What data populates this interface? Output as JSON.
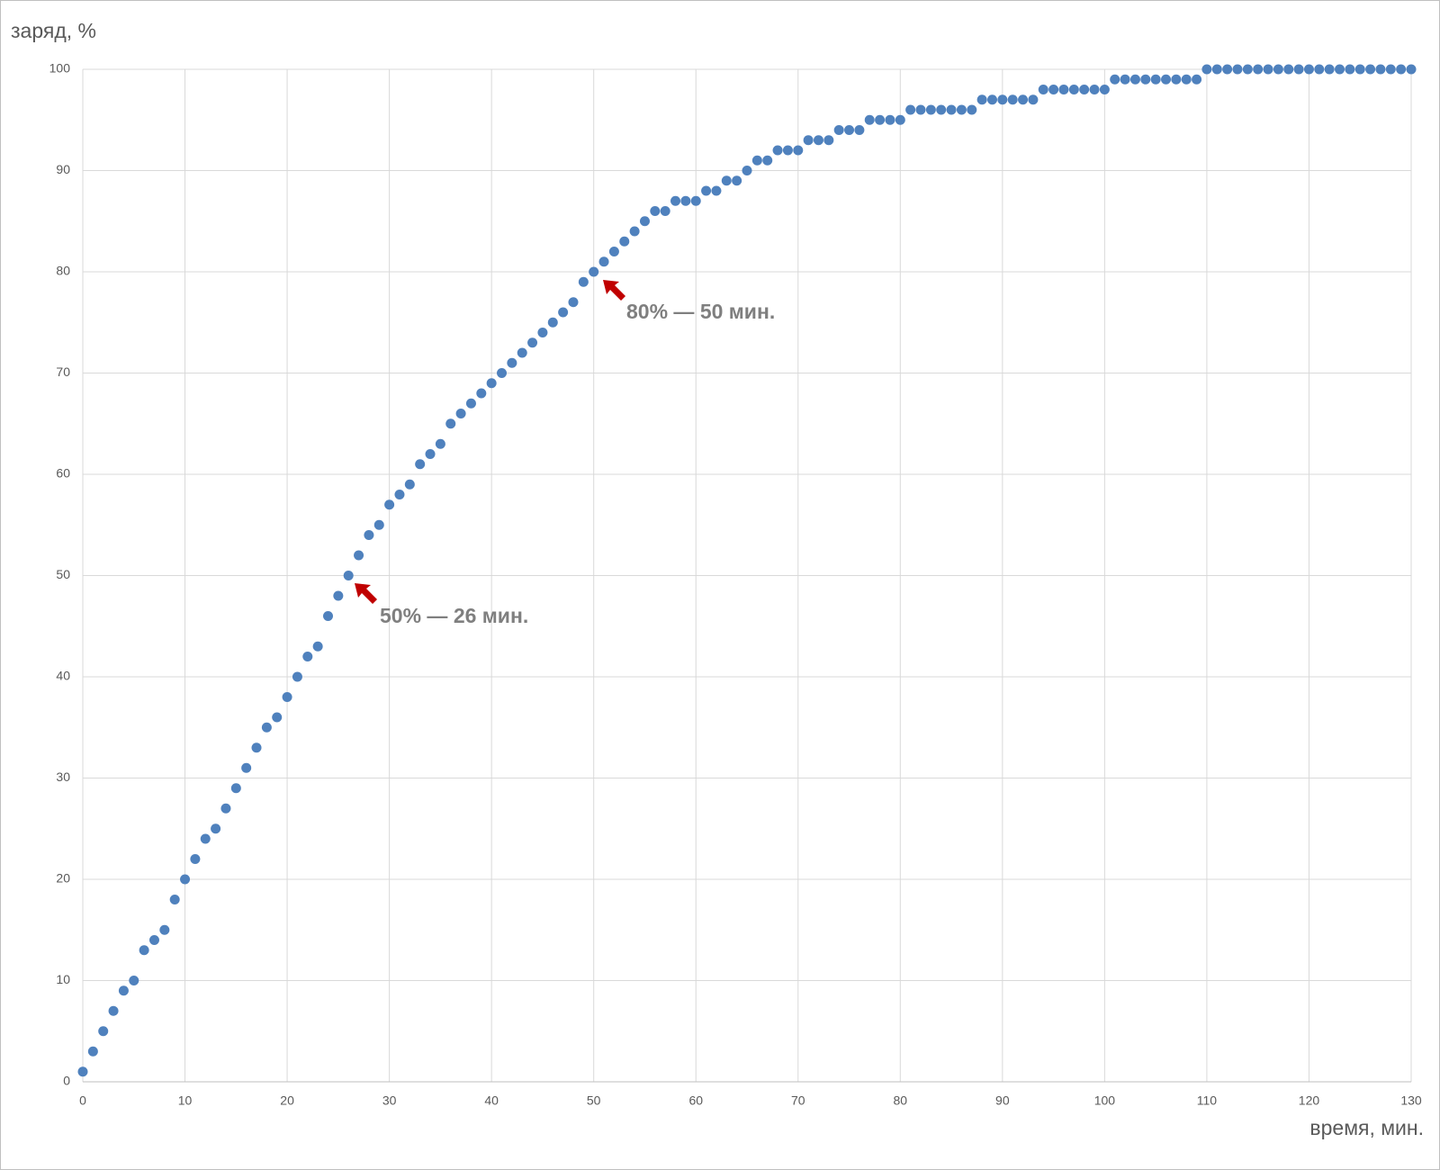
{
  "chart_data": {
    "type": "scatter",
    "y_label": "заряд, %",
    "x_label": "время, мин.",
    "annotations": [
      "80% — 50 мин.",
      "50% — 26 мин."
    ],
    "color": "#4f81bd",
    "grid": true,
    "xlim": [
      0,
      130
    ],
    "xticks": [
      0,
      10,
      20,
      30,
      40,
      50,
      60,
      70,
      80,
      90,
      100,
      110,
      120,
      130
    ],
    "ylim": [
      0,
      100
    ],
    "yticks": [
      0,
      10,
      20,
      30,
      40,
      50,
      60,
      70,
      80,
      90,
      100
    ],
    "x": [
      0,
      1,
      2,
      3,
      4,
      5,
      6,
      7,
      8,
      9,
      10,
      11,
      12,
      13,
      14,
      15,
      16,
      17,
      18,
      19,
      20,
      21,
      22,
      23,
      24,
      25,
      26,
      27,
      28,
      29,
      30,
      31,
      32,
      33,
      34,
      35,
      36,
      37,
      38,
      39,
      40,
      41,
      42,
      43,
      44,
      45,
      46,
      47,
      48,
      49,
      50,
      51,
      52,
      53,
      54,
      55,
      56,
      57,
      58,
      59,
      60,
      61,
      62,
      63,
      64,
      65,
      66,
      67,
      68,
      69,
      70,
      71,
      72,
      73,
      74,
      75,
      76,
      77,
      78,
      79,
      80,
      81,
      82,
      83,
      84,
      85,
      86,
      87,
      88,
      89,
      90,
      91,
      92,
      93,
      94,
      95,
      96,
      97,
      98,
      99,
      100,
      101,
      102,
      103,
      104,
      105,
      106,
      107,
      108,
      109,
      110,
      111,
      112,
      113,
      114,
      115,
      116,
      117,
      118,
      119,
      120,
      121,
      122,
      123,
      124,
      125,
      126,
      127,
      128,
      129,
      130
    ],
    "values": [
      1,
      3,
      5,
      7,
      9,
      10,
      13,
      14,
      15,
      18,
      20,
      22,
      24,
      25,
      27,
      29,
      31,
      33,
      35,
      36,
      38,
      40,
      42,
      43,
      46,
      48,
      50,
      52,
      54,
      55,
      57,
      58,
      59,
      61,
      62,
      63,
      65,
      66,
      67,
      68,
      69,
      70,
      71,
      72,
      73,
      74,
      75,
      76,
      77,
      79,
      80,
      81,
      82,
      83,
      84,
      85,
      86,
      86,
      87,
      87,
      87,
      88,
      88,
      89,
      89,
      90,
      91,
      91,
      92,
      92,
      92,
      93,
      93,
      93,
      94,
      94,
      94,
      95,
      95,
      95,
      95,
      96,
      96,
      96,
      96,
      96,
      96,
      96,
      97,
      97,
      97,
      97,
      97,
      97,
      98,
      98,
      98,
      98,
      98,
      98,
      98,
      99,
      99,
      99,
      99,
      99,
      99,
      99,
      99,
      99,
      100,
      100,
      100,
      100,
      100,
      100,
      100,
      100,
      100,
      100,
      100,
      100,
      100,
      100,
      100,
      100,
      100,
      100,
      100,
      100,
      100
    ]
  }
}
